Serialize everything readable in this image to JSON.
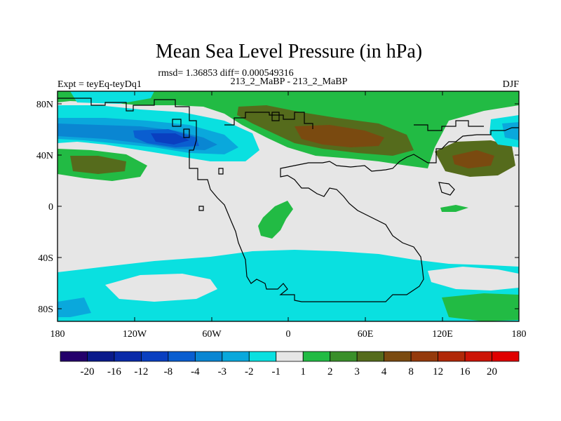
{
  "chart_data": {
    "type": "heatmap",
    "title": "Mean Sea Level Pressure (in hPa)",
    "stats_line": "rmsd= 1.36853 diff= 0.000549316",
    "left_label": "Expt = teyEq-teyDq1",
    "center_label": "213_2_MaBP - 213_2_MaBP",
    "right_label": "DJF",
    "x_ticks": [
      "180",
      "120W",
      "60W",
      "0",
      "60E",
      "120E",
      "180"
    ],
    "y_ticks": [
      "80N",
      "40N",
      "0",
      "40S",
      "80S"
    ],
    "x_range": [
      -180,
      180
    ],
    "y_range": [
      -90,
      90
    ],
    "colorbar": {
      "labels": [
        "-20",
        "-16",
        "-12",
        "-8",
        "-4",
        "-3",
        "-2",
        "-1",
        "1",
        "2",
        "3",
        "4",
        "8",
        "12",
        "16",
        "20"
      ],
      "colors": [
        "#24006b",
        "#0a1a8a",
        "#0a2aa8",
        "#0a3fc0",
        "#0a5ed0",
        "#0a86d2",
        "#0aa8dc",
        "#0ae0e0",
        "#e6e6e6",
        "#22bb44",
        "#3a8f2a",
        "#556b1c",
        "#7a4a10",
        "#943a0c",
        "#b02808",
        "#cc1406",
        "#e00000"
      ]
    },
    "regions": [
      {
        "name": "background",
        "level": "-1 to 1"
      },
      {
        "name": "north-atlantic-eurasia-high",
        "level": "1 to 8"
      },
      {
        "name": "north-pacific-low",
        "level": "-8 to -1"
      },
      {
        "name": "southern-ocean-low",
        "level": "-2 to -1"
      },
      {
        "name": "tropical-indian-ocean-positive",
        "level": "1 to 2"
      },
      {
        "name": "north-pacific-west-high",
        "level": "1 to 4"
      }
    ]
  }
}
